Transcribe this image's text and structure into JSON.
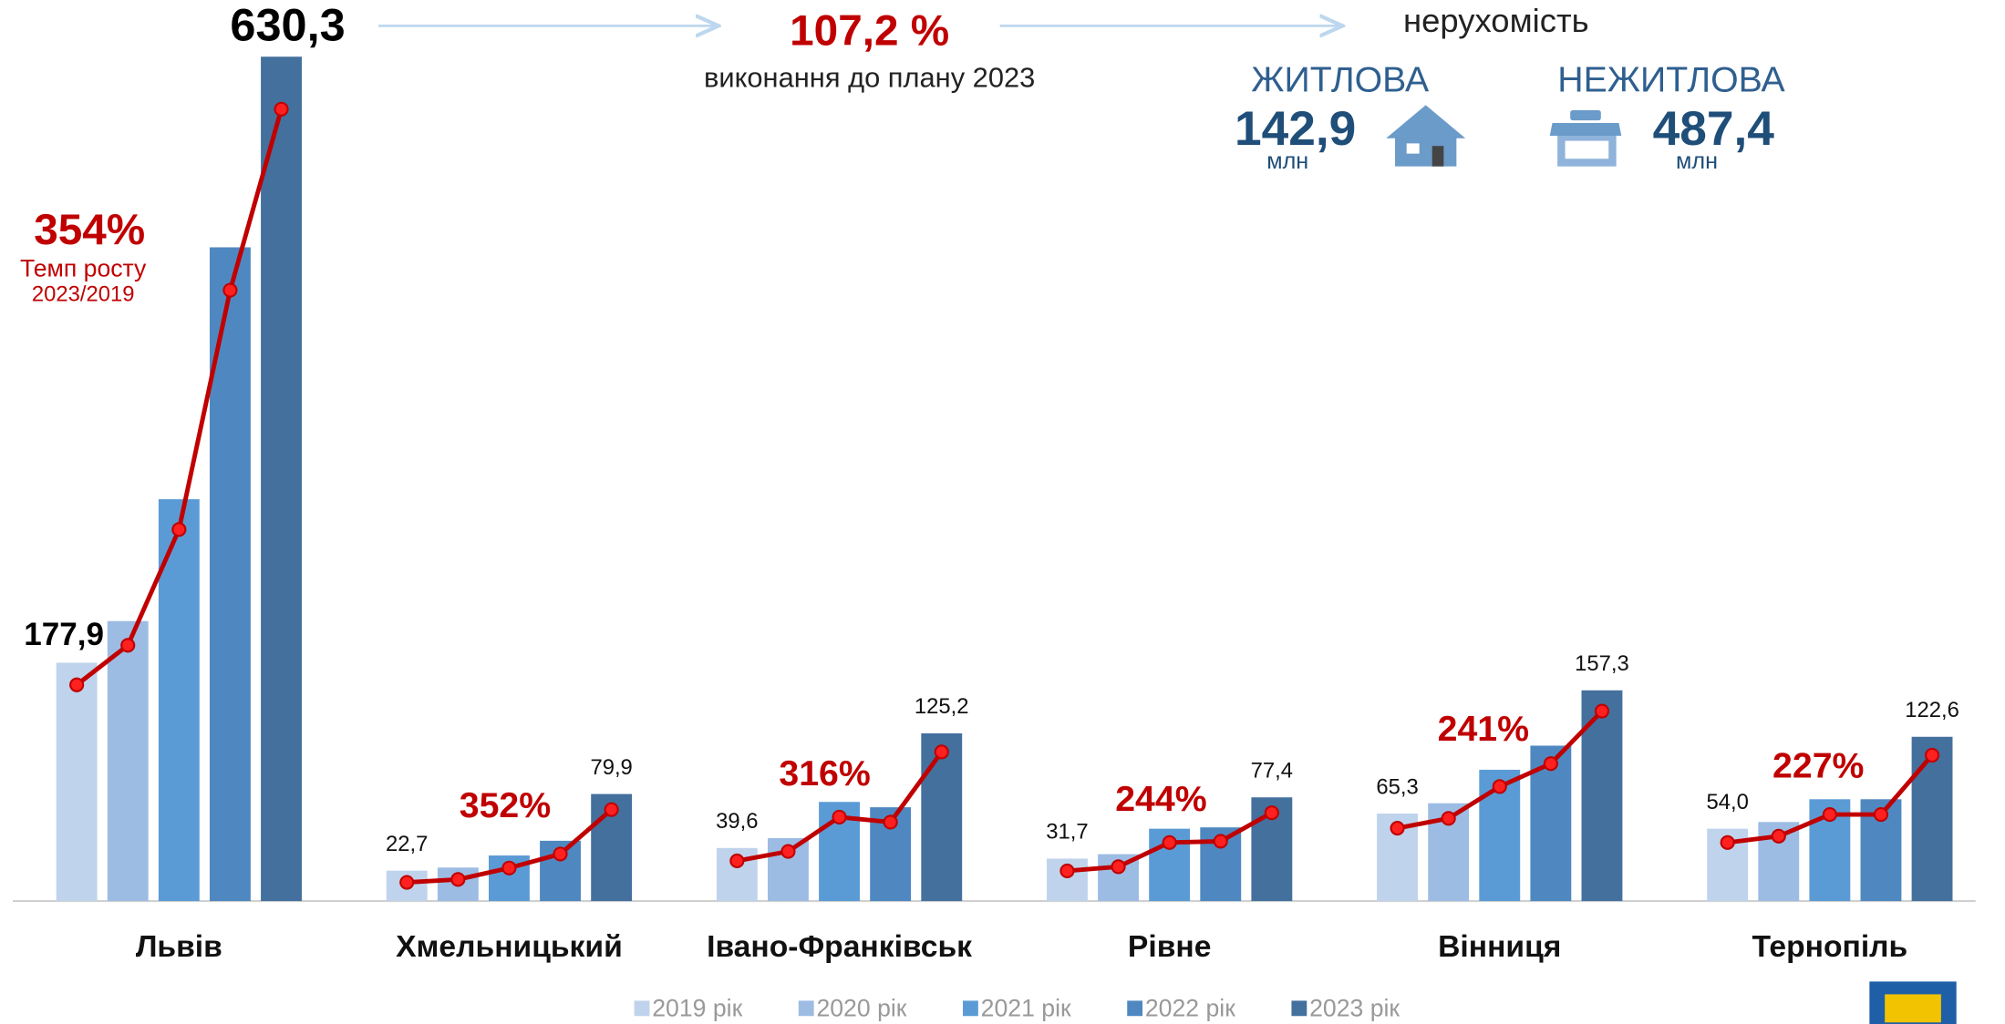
{
  "chart_data": {
    "type": "bar",
    "categories": [
      "Львів",
      "Хмельницький",
      "Івано-Франківськ",
      "Рівне",
      "Вінниця",
      "Тернопіль"
    ],
    "series": [
      {
        "name": "2019 рік",
        "color": "#c0d3ec",
        "values": [
          177.9,
          22.7,
          39.6,
          31.7,
          65.3,
          54
        ],
        "value_labels": [
          "177,9",
          "22,7",
          "39,6",
          "31,7",
          "65,3",
          "54,0"
        ]
      },
      {
        "name": "2020 рік",
        "color": "#9dbce3",
        "values": [
          209,
          25,
          47,
          35,
          73,
          59
        ]
      },
      {
        "name": "2021 рік",
        "color": "#5b9bd5",
        "values": [
          300,
          34,
          74,
          54,
          98,
          76
        ]
      },
      {
        "name": "2022 рік",
        "color": "#4f88c0",
        "values": [
          488,
          45,
          70,
          55,
          116,
          76
        ]
      },
      {
        "name": "2023 рік",
        "color": "#44709e",
        "values": [
          630.3,
          79.9,
          125.2,
          77.4,
          157.3,
          122.6
        ],
        "value_labels": [
          "630,3",
          "79,9",
          "125,2",
          "77,4",
          "157,3",
          "122,6"
        ]
      }
    ],
    "growth_values": [
      354,
      352,
      316,
      244,
      241,
      227
    ],
    "growth_labels": [
      "354%",
      "352%",
      "316%",
      "244%",
      "241%",
      "227%"
    ],
    "growth_color": "#c00000",
    "growth_caption": [
      "Темп росту",
      "2023/2019"
    ],
    "plan_value": {
      "value": 107.2,
      "label": "107,2 %"
    },
    "plan_caption": "виконання до плану 2023",
    "property_title": "нерухомість",
    "residential": {
      "label": "ЖИТЛОВА",
      "value": {
        "value": 142.9,
        "label": "142,9"
      },
      "unit": "млн"
    },
    "nonresidential": {
      "label": "НЕЖИТЛОВА",
      "value": {
        "value": 487.4,
        "label": "487,4"
      },
      "unit": "млн"
    },
    "ylim": [
      0,
      660
    ]
  }
}
